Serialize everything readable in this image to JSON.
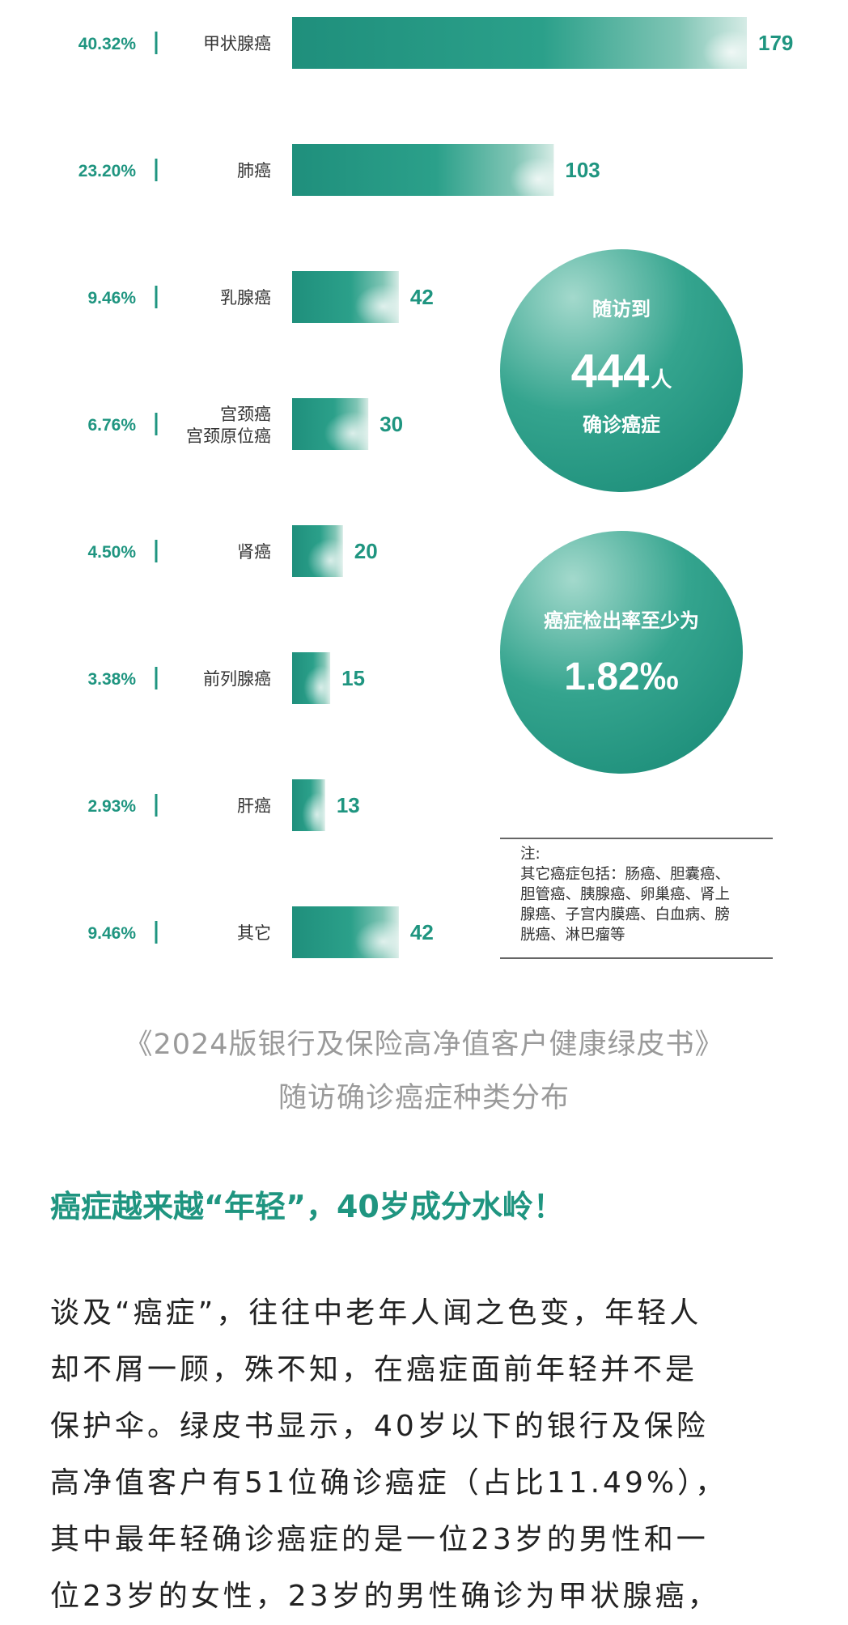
{
  "colors": {
    "accent": "#1f9580",
    "bar_dark": "#1f8f7c",
    "bar_light": "#d5ebe5"
  },
  "chart_data": {
    "type": "bar",
    "orientation": "horizontal",
    "categories": [
      "甲状腺癌",
      "肺癌",
      "乳腺癌",
      "宫颈癌\n宫颈原位癌",
      "肾癌",
      "前列腺癌",
      "肝癌",
      "其它"
    ],
    "values": [
      179,
      103,
      42,
      30,
      20,
      15,
      13,
      42
    ],
    "percent_labels": [
      "40.32%",
      "23.20%",
      "9.46%",
      "6.76%",
      "4.50%",
      "3.38%",
      "2.93%",
      "9.46%"
    ],
    "value_labels": [
      "179",
      "103",
      "42",
      "30",
      "20",
      "15",
      "13",
      "42"
    ],
    "xlim": [
      0,
      179
    ],
    "title": "",
    "xlabel": "",
    "ylabel": "",
    "grid": false
  },
  "stats": {
    "followup": {
      "line1": "随访到",
      "number": "444",
      "unit": "人",
      "line3": "确诊癌症"
    },
    "detection": {
      "label": "癌症检出率至少为",
      "value": "1.82‰"
    }
  },
  "note": {
    "title": "注:",
    "lines": [
      "其它癌症包括：肠癌、胆囊癌、",
      "胆管癌、胰腺癌、卵巢癌、肾上",
      "腺癌、子宫内膜癌、白血病、膀",
      "胱癌、淋巴瘤等"
    ]
  },
  "caption": {
    "line1": "《2024版银行及保险高净值客户健康绿皮书》",
    "line2": "随访确诊癌症种类分布"
  },
  "section_heading": "癌症越来越“年轻”，40岁成分水岭！",
  "body": {
    "lines": [
      "谈及“癌症”，往往中老年人闻之色变，年轻人",
      "却不屑一顾，殊不知，在癌症面前年轻并不是",
      "保护伞。绿皮书显示，40岁以下的银行及保险",
      "高净值客户有51位确诊癌症（占比11.49%），",
      "其中最年轻确诊癌症的是一位23岁的男性和一",
      "位23岁的女性，23岁的男性确诊为甲状腺癌，"
    ]
  }
}
